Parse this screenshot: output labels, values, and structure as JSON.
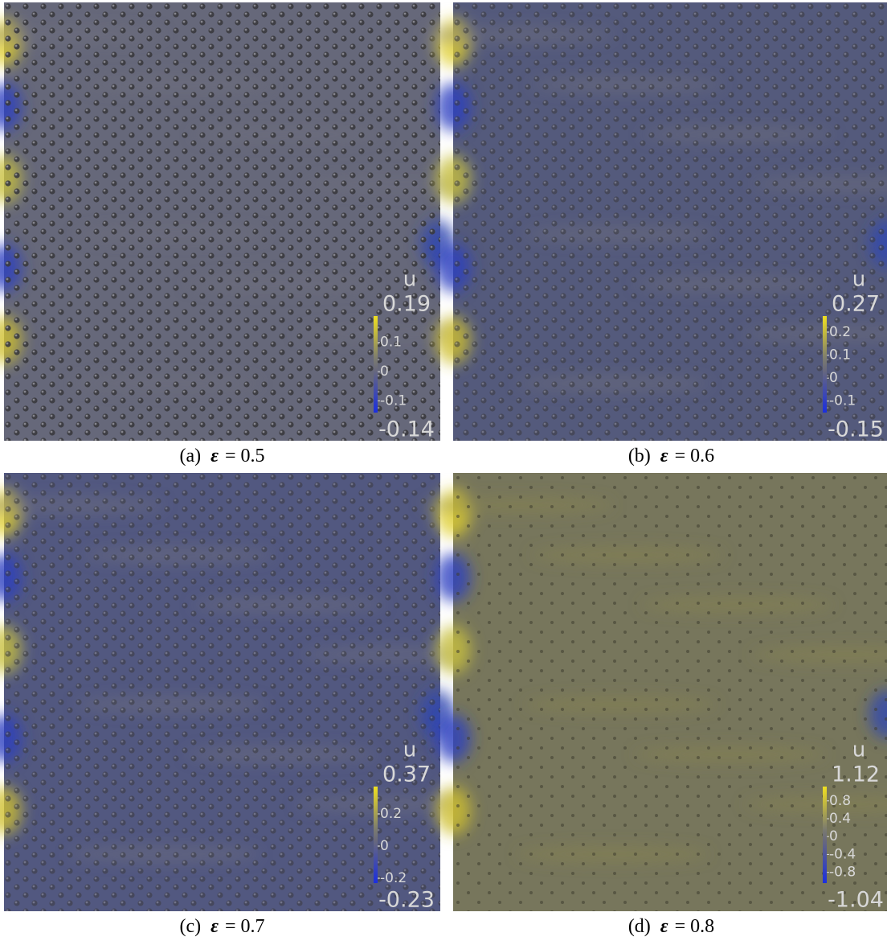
{
  "panels": [
    {
      "caption": {
        "label": "(a)",
        "symbol": "ε",
        "equals": "= 0.5"
      },
      "colorbar": {
        "title": "u",
        "max": 0.19,
        "min": -0.14,
        "ticks": [
          0.1,
          0,
          -0.1
        ]
      }
    },
    {
      "caption": {
        "label": "(b)",
        "symbol": "ε",
        "equals": "= 0.6"
      },
      "colorbar": {
        "title": "u",
        "max": 0.27,
        "min": -0.15,
        "ticks": [
          0.2,
          0.1,
          0,
          -0.1
        ]
      }
    },
    {
      "caption": {
        "label": "(c)",
        "symbol": "ε",
        "equals": "= 0.7"
      },
      "colorbar": {
        "title": "u",
        "max": 0.37,
        "min": -0.23,
        "ticks": [
          0.2,
          0,
          -0.2
        ]
      }
    },
    {
      "caption": {
        "label": "(d)",
        "symbol": "ε",
        "equals": "= 0.8"
      },
      "colorbar": {
        "title": "u",
        "max": 1.12,
        "min": -1.04,
        "ticks": [
          0.8,
          0.4,
          0,
          -0.4,
          -0.8
        ]
      }
    }
  ]
}
